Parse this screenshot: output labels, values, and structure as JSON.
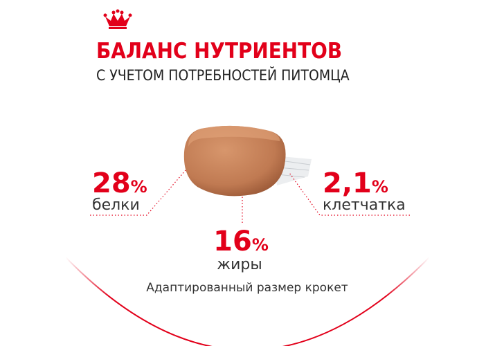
{
  "header": {
    "title": "БАЛАНС НУТРИЕНТОВ",
    "subtitle": "С УЧЕТОМ ПОТРЕБНОСТЕЙ ПИТОМЦА"
  },
  "nutrients": [
    {
      "value": "28",
      "unit": "%",
      "label": "белки"
    },
    {
      "value": "2,1",
      "unit": "%",
      "label": "клетчатка"
    },
    {
      "value": "16",
      "unit": "%",
      "label": "жиры"
    }
  ],
  "caption": "Адаптированный размер крокет"
}
